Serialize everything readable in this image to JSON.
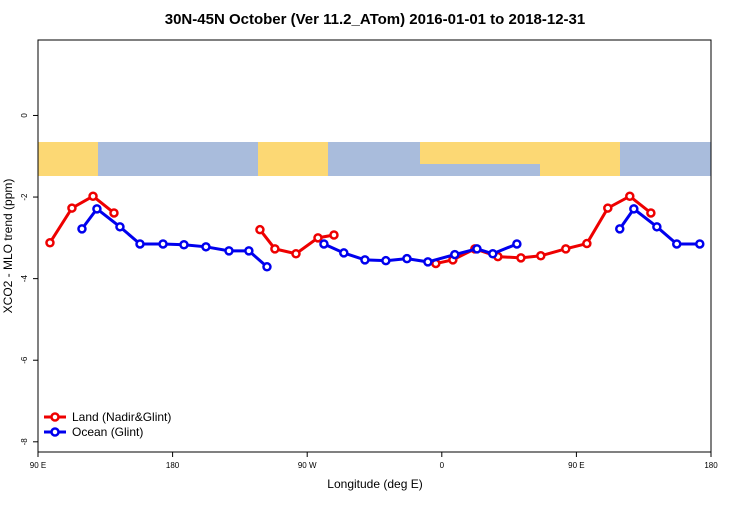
{
  "chart_data": {
    "type": "line",
    "title": "30N-45N October (Ver 11.2_ATom)   2016-01-01 to 2018-12-31",
    "x_label": "Longitude (deg E)",
    "y_label": "XCO2 - MLO trend (ppm)",
    "xlim": [
      90,
      540
    ],
    "ylim": [
      -8.25,
      1.85
    ],
    "xticks": [
      {
        "value": 90,
        "label": "90 E"
      },
      180,
      {
        "value": 270,
        "label": "90 W"
      },
      {
        "value": 360,
        "label": "0"
      },
      {
        "value": 450,
        "label": "90 E"
      },
      {
        "value": 540,
        "label": "180"
      }
    ],
    "yticks": [
      -8,
      -6,
      -4,
      -2,
      0
    ],
    "legend": "bottom-left",
    "series": [
      {
        "name": "Land (Nadir&Glint)",
        "color": "#ee0000",
        "x": [
          98.0,
          112.7,
          126.8,
          140.8,
          null,
          238.4,
          248.4,
          262.5,
          277.2,
          287.9,
          null,
          356.0,
          367.4,
          382.1,
          397.5,
          412.9,
          426.2,
          442.9,
          457.0,
          471.0,
          485.7,
          499.8
        ],
        "values": [
          -3.12,
          -2.27,
          -1.98,
          -2.39,
          null,
          -2.8,
          -3.27,
          -3.39,
          -3.0,
          -2.93,
          null,
          -3.63,
          -3.54,
          -3.27,
          -3.46,
          -3.49,
          -3.44,
          -3.27,
          -3.14,
          -2.27,
          -1.98,
          -2.39
        ]
      },
      {
        "name": "Ocean (Glint)",
        "color": "#0000ee",
        "x": [
          119.4,
          129.4,
          144.8,
          158.2,
          173.6,
          187.6,
          202.3,
          217.7,
          231.0,
          243.1,
          null,
          281.2,
          294.5,
          308.6,
          322.6,
          336.7,
          350.7,
          368.7,
          383.5,
          394.1,
          410.2,
          null,
          479.0,
          488.4,
          503.8,
          517.1,
          532.5
        ],
        "values": [
          -2.78,
          -2.29,
          -2.73,
          -3.15,
          -3.15,
          -3.17,
          -3.22,
          -3.32,
          -3.32,
          -3.71,
          null,
          -3.15,
          -3.37,
          -3.54,
          -3.56,
          -3.51,
          -3.59,
          -3.41,
          -3.27,
          -3.39,
          -3.15,
          null,
          -2.78,
          -2.29,
          -2.73,
          -3.15,
          -3.15
        ]
      }
    ]
  }
}
